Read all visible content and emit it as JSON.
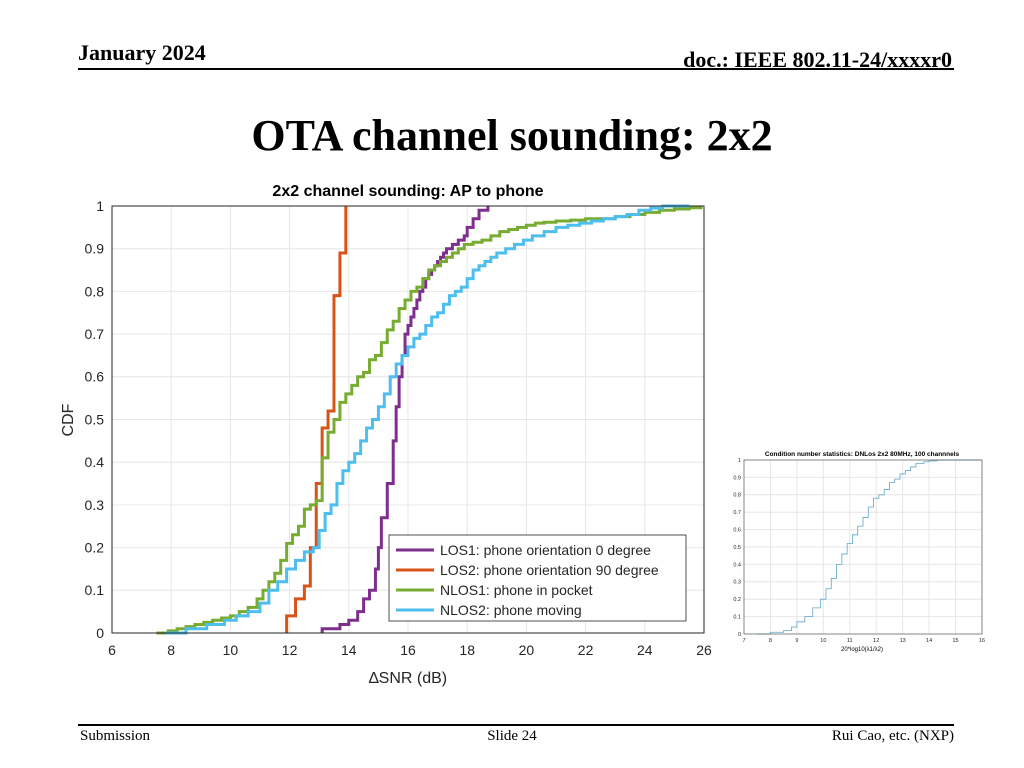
{
  "header": {
    "date": "January 2024",
    "doc": "doc.: IEEE 802.11-24/xxxxr0"
  },
  "slide": {
    "title": "OTA channel sounding: 2x2"
  },
  "footer": {
    "left": "Submission",
    "center": "Slide 24",
    "right": "Rui Cao, etc. (NXP)"
  },
  "colors": {
    "los1": "#7E2F8E",
    "los2": "#D95319",
    "nlos1": "#77AC30",
    "nlos2": "#4DBEEE",
    "inset_line": "#5DA8C8"
  },
  "chart_data": [
    {
      "type": "line",
      "title": "2x2 channel sounding: AP to phone",
      "xlabel": "∆SNR (dB)",
      "ylabel": "CDF",
      "xlim": [
        6,
        26
      ],
      "ylim": [
        0,
        1
      ],
      "xticks": [
        6,
        8,
        10,
        12,
        14,
        16,
        18,
        20,
        22,
        24,
        26
      ],
      "yticks": [
        0,
        0.1,
        0.2,
        0.3,
        0.4,
        0.5,
        0.6,
        0.7,
        0.8,
        0.9,
        1
      ],
      "grid": true,
      "legend": "bottom-right",
      "series": [
        {
          "name": "LOS1: phone orientation 0 degree",
          "x": [
            13.1,
            13.7,
            14.0,
            14.3,
            14.5,
            14.7,
            14.9,
            15.0,
            15.1,
            15.3,
            15.5,
            15.6,
            15.7,
            15.8,
            15.9,
            16.0,
            16.1,
            16.2,
            16.3,
            16.4,
            16.5,
            16.6,
            16.7,
            16.8,
            16.9,
            17.0,
            17.1,
            17.2,
            17.3,
            17.5,
            17.7,
            17.9,
            18.0,
            18.2,
            18.4,
            18.7
          ],
          "y": [
            0.01,
            0.02,
            0.03,
            0.05,
            0.08,
            0.1,
            0.15,
            0.2,
            0.27,
            0.35,
            0.45,
            0.53,
            0.6,
            0.65,
            0.7,
            0.72,
            0.74,
            0.76,
            0.78,
            0.8,
            0.81,
            0.83,
            0.84,
            0.85,
            0.86,
            0.87,
            0.88,
            0.89,
            0.9,
            0.91,
            0.92,
            0.93,
            0.95,
            0.97,
            0.99,
            1.0
          ]
        },
        {
          "name": "LOS2: phone orientation 90 degree",
          "x": [
            11.9,
            12.2,
            12.5,
            12.7,
            12.9,
            13.1,
            13.3,
            13.5,
            13.7,
            13.9
          ],
          "y": [
            0.04,
            0.08,
            0.11,
            0.2,
            0.35,
            0.48,
            0.52,
            0.79,
            0.89,
            1.0
          ]
        },
        {
          "name": "NLOS1: phone in pocket",
          "x": [
            7.5,
            7.9,
            8.2,
            8.5,
            8.8,
            9.1,
            9.4,
            9.7,
            10.0,
            10.3,
            10.6,
            10.9,
            11.1,
            11.3,
            11.5,
            11.7,
            11.9,
            12.1,
            12.3,
            12.5,
            12.7,
            12.9,
            13.1,
            13.3,
            13.5,
            13.7,
            13.9,
            14.1,
            14.3,
            14.5,
            14.7,
            14.9,
            15.1,
            15.3,
            15.5,
            15.7,
            15.9,
            16.1,
            16.3,
            16.5,
            16.7,
            16.9,
            17.1,
            17.3,
            17.5,
            17.7,
            17.9,
            18.2,
            18.5,
            18.8,
            19.1,
            19.4,
            19.7,
            20.0,
            20.3,
            20.6,
            21.0,
            21.5,
            22.0,
            22.5,
            23.0,
            23.5,
            24.0,
            24.5,
            25.0,
            25.5,
            25.9
          ],
          "y": [
            0.0,
            0.005,
            0.01,
            0.015,
            0.02,
            0.025,
            0.03,
            0.035,
            0.04,
            0.05,
            0.06,
            0.08,
            0.1,
            0.12,
            0.14,
            0.17,
            0.21,
            0.23,
            0.25,
            0.29,
            0.3,
            0.31,
            0.41,
            0.47,
            0.5,
            0.54,
            0.56,
            0.58,
            0.6,
            0.61,
            0.64,
            0.65,
            0.68,
            0.71,
            0.73,
            0.76,
            0.78,
            0.8,
            0.81,
            0.83,
            0.85,
            0.86,
            0.87,
            0.88,
            0.89,
            0.9,
            0.91,
            0.915,
            0.92,
            0.93,
            0.94,
            0.945,
            0.95,
            0.955,
            0.96,
            0.962,
            0.965,
            0.967,
            0.97,
            0.97,
            0.975,
            0.98,
            0.985,
            0.99,
            0.993,
            0.996,
            1.0
          ]
        },
        {
          "name": "NLOS2: phone moving",
          "x": [
            7.8,
            8.5,
            9.2,
            9.8,
            10.2,
            10.6,
            11.0,
            11.3,
            11.6,
            11.9,
            12.2,
            12.5,
            12.8,
            13.0,
            13.2,
            13.4,
            13.6,
            13.8,
            14.0,
            14.2,
            14.4,
            14.6,
            14.8,
            15.0,
            15.2,
            15.4,
            15.6,
            15.8,
            16.0,
            16.2,
            16.4,
            16.6,
            16.8,
            17.0,
            17.2,
            17.4,
            17.6,
            17.8,
            18.0,
            18.2,
            18.4,
            18.6,
            18.8,
            19.0,
            19.3,
            19.6,
            19.9,
            20.2,
            20.6,
            21.0,
            21.4,
            21.8,
            22.2,
            22.6,
            23.0,
            23.4,
            23.8,
            24.2,
            24.6,
            25.0,
            25.5
          ],
          "y": [
            0.0,
            0.01,
            0.02,
            0.03,
            0.04,
            0.05,
            0.07,
            0.1,
            0.12,
            0.15,
            0.17,
            0.19,
            0.2,
            0.24,
            0.28,
            0.3,
            0.35,
            0.38,
            0.4,
            0.42,
            0.45,
            0.48,
            0.5,
            0.53,
            0.56,
            0.6,
            0.63,
            0.65,
            0.67,
            0.69,
            0.7,
            0.72,
            0.74,
            0.75,
            0.77,
            0.79,
            0.8,
            0.81,
            0.83,
            0.85,
            0.86,
            0.87,
            0.88,
            0.89,
            0.9,
            0.91,
            0.92,
            0.93,
            0.94,
            0.95,
            0.955,
            0.96,
            0.965,
            0.97,
            0.975,
            0.98,
            0.99,
            0.995,
            1.0,
            1.0,
            1.0
          ]
        }
      ]
    },
    {
      "type": "line",
      "title": "Condition number statistics: DNLos 2x2 80MHz, 100 channnels",
      "xlabel": "20*log10(λ1/λ2)",
      "ylabel": "",
      "xlim": [
        7,
        16
      ],
      "ylim": [
        0,
        1
      ],
      "xticks": [
        7,
        8,
        9,
        10,
        11,
        12,
        13,
        14,
        15,
        16
      ],
      "yticks": [
        0,
        0.1,
        0.2,
        0.3,
        0.4,
        0.5,
        0.6,
        0.7,
        0.8,
        0.9,
        1
      ],
      "grid": true,
      "series": [
        {
          "name": "",
          "x": [
            7.5,
            8.0,
            8.5,
            8.8,
            9.0,
            9.3,
            9.6,
            9.9,
            10.1,
            10.3,
            10.5,
            10.7,
            10.9,
            11.1,
            11.3,
            11.5,
            11.7,
            11.9,
            12.1,
            12.3,
            12.5,
            12.7,
            12.9,
            13.1,
            13.3,
            13.5,
            13.8,
            14.0,
            14.3,
            16.0
          ],
          "y": [
            0.0,
            0.01,
            0.02,
            0.04,
            0.07,
            0.1,
            0.15,
            0.2,
            0.26,
            0.32,
            0.4,
            0.46,
            0.52,
            0.57,
            0.62,
            0.67,
            0.73,
            0.78,
            0.8,
            0.83,
            0.87,
            0.89,
            0.92,
            0.94,
            0.96,
            0.98,
            0.99,
            0.995,
            1.0,
            1.0
          ]
        }
      ]
    }
  ]
}
